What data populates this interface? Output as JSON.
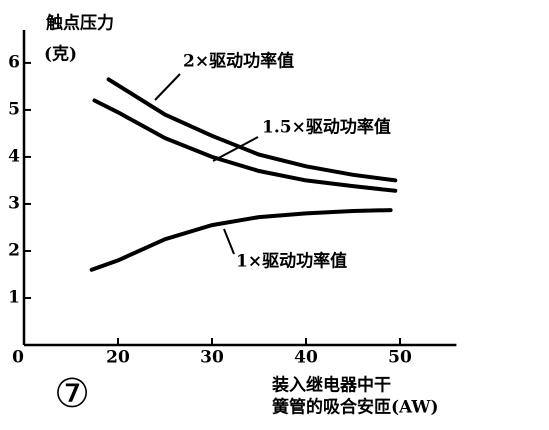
{
  "chart_data": {
    "type": "line",
    "y_label_lines": [
      "触点压力",
      "(克)"
    ],
    "x_label_lines": [
      "装入继电器中干",
      "簧管的吸合安匝(AW)"
    ],
    "figure_number": "⑦",
    "xlim": [
      10,
      56
    ],
    "xticks": [
      {
        "value": 10,
        "label": "0"
      },
      20,
      30,
      40,
      50
    ],
    "ylim": [
      0,
      6.7
    ],
    "yticks": [
      1,
      2,
      3,
      4,
      5,
      6
    ],
    "series": [
      {
        "name": "2×驱动功率值",
        "color": "#000000",
        "x": [
          19,
          25,
          30,
          35,
          40,
          45,
          49.5
        ],
        "values": [
          5.65,
          4.9,
          4.45,
          4.05,
          3.8,
          3.62,
          3.5
        ]
      },
      {
        "name": "1.5×驱动功率值",
        "color": "#000000",
        "x": [
          17.5,
          20,
          25,
          30,
          35,
          40,
          45,
          49.5
        ],
        "values": [
          5.2,
          4.95,
          4.4,
          4.0,
          3.7,
          3.5,
          3.38,
          3.28
        ]
      },
      {
        "name": "1×驱动功率值",
        "color": "#000000",
        "x": [
          17.2,
          20,
          25,
          30,
          35,
          40,
          45,
          49
        ],
        "values": [
          1.6,
          1.8,
          2.25,
          2.55,
          2.72,
          2.8,
          2.85,
          2.87
        ]
      }
    ]
  }
}
